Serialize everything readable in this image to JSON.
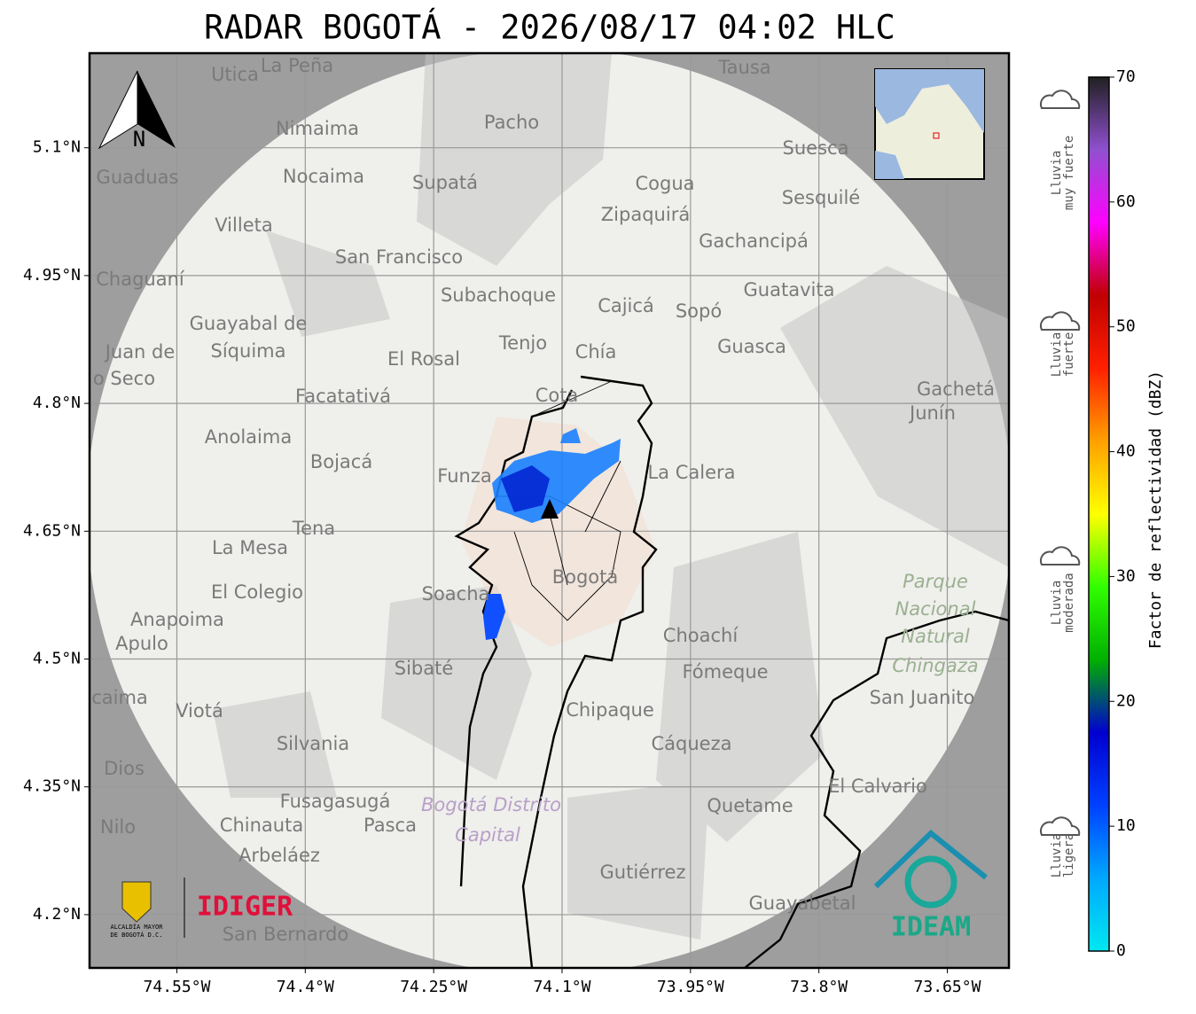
{
  "chart_data": {
    "type": "map",
    "title": "RADAR BOGOTÁ - 2026/08/17 04:02 HLC",
    "xlim": [
      -74.652,
      -73.578
    ],
    "ylim": [
      4.1375,
      5.211
    ],
    "xticks": [
      {
        "value": -74.55,
        "label": "74.55°W"
      },
      {
        "value": -74.4,
        "label": "74.4°W"
      },
      {
        "value": -74.25,
        "label": "74.25°W"
      },
      {
        "value": -74.1,
        "label": "74.1°W"
      },
      {
        "value": -73.95,
        "label": "73.95°W"
      },
      {
        "value": -73.8,
        "label": "73.8°W"
      },
      {
        "value": -73.65,
        "label": "73.65°W"
      }
    ],
    "yticks": [
      {
        "value": 5.1,
        "label": "5.1°N"
      },
      {
        "value": 4.95,
        "label": "4.95°N"
      },
      {
        "value": 4.8,
        "label": "4.8°N"
      },
      {
        "value": 4.65,
        "label": "4.65°N"
      },
      {
        "value": 4.5,
        "label": "4.5°N"
      },
      {
        "value": 4.35,
        "label": "4.35°N"
      },
      {
        "value": 4.2,
        "label": "4.2°N"
      }
    ],
    "grid": true,
    "north": "N",
    "places": [
      "La Peña",
      "Utica",
      "Tausa",
      "Pacho",
      "Nimaima",
      "Guaduas",
      "Nocaima",
      "Supatá",
      "Suesca",
      "Cogua",
      "Sesquilé",
      "Zipaquirá",
      "Villeta",
      "Gachancipá",
      "San Francisco",
      "Chaguaní",
      "Guatavita",
      "Subachoque",
      "Cajicá",
      "Sopó",
      "Guayabal de",
      "Síquima",
      "Tenjo",
      "Chía",
      "Guasca",
      "Juan de",
      "o Seco",
      "El Rosal",
      "Facatativá",
      "Cota",
      "Gachetá",
      "Junín",
      "Anolaima",
      "Bojacá",
      "Funza",
      "La Calera",
      "Tena",
      "La Mesa",
      "Bogotá",
      "Soacha",
      "Parque",
      "Nacional",
      "Natural",
      "Chingaza",
      "El Colegio",
      "Anapoima",
      "Apulo",
      "Choachí",
      "Sibaté",
      "Fómeque",
      "San Juanito",
      "caima",
      "Viotá",
      "Chipaque",
      "Silvania",
      "Cáqueza",
      "Dios",
      "El Calvario",
      "Fusagasugá",
      "Bogotá Distrito",
      "Capital",
      "Quetame",
      "Nilo",
      "Chinauta",
      "Pasca",
      "Arbeláez",
      "Gutiérrez",
      "Guayabetal",
      "San Bernardo"
    ],
    "logos": {
      "alcaldia": [
        "ALCALDÍA MAYOR",
        "DE BOGOTÁ D.C."
      ],
      "idiger": "IDIGER",
      "ideam": "IDEAM"
    },
    "colorbar": {
      "label": "Factor de reflectividad (dBZ)",
      "ylim": [
        0,
        70
      ],
      "yticks": [
        0,
        10,
        20,
        30,
        40,
        50,
        60,
        70
      ],
      "colors": [
        "#00e8f0",
        "#00a8ff",
        "#0040ff",
        "#0000d0",
        "#00b000",
        "#30ff00",
        "#ffff00",
        "#ffa000",
        "#ff2000",
        "#c00000",
        "#ff00ff",
        "#9050d0",
        "#202020"
      ]
    },
    "rain_levels": [
      [
        "Lluvia",
        "muy fuerte"
      ],
      [
        "Lluvia",
        "fuerte"
      ],
      [
        "Lluvia",
        "moderada"
      ],
      [
        "Lluvia",
        "ligera"
      ]
    ]
  }
}
